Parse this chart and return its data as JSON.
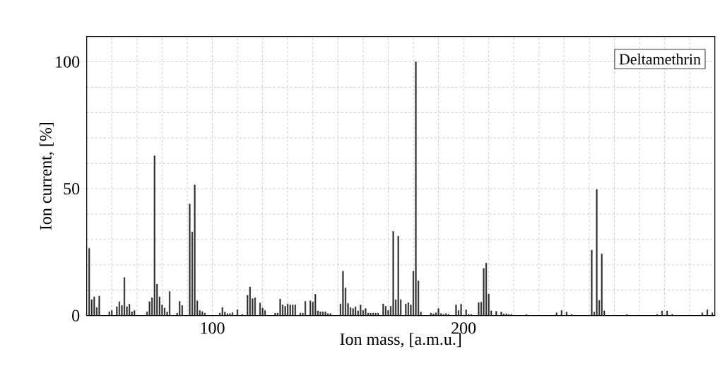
{
  "chart_data": {
    "type": "bar",
    "xlabel": "Ion mass, [a.m.u.]",
    "ylabel": "Ion current, [%]",
    "annotations": [
      "Deltamethrin"
    ],
    "x": [
      51,
      52,
      53,
      54,
      55,
      59,
      60,
      62,
      63,
      64,
      65,
      66,
      67,
      68,
      69,
      74,
      75,
      76,
      77,
      78,
      79,
      80,
      81,
      82,
      83,
      86,
      87,
      88,
      91,
      92,
      93,
      94,
      95,
      96,
      97,
      103,
      104,
      105,
      106,
      107,
      108,
      110,
      112,
      114,
      115,
      116,
      117,
      119,
      120,
      121,
      125,
      126,
      127,
      128,
      129,
      130,
      131,
      132,
      133,
      135,
      136,
      137,
      139,
      140,
      141,
      142,
      143,
      144,
      145,
      146,
      147,
      151,
      152,
      153,
      154,
      155,
      156,
      157,
      158,
      159,
      160,
      161,
      162,
      163,
      164,
      165,
      166,
      168,
      169,
      170,
      171,
      172,
      173,
      174,
      175,
      177,
      178,
      179,
      180,
      181,
      182,
      183,
      187,
      188,
      189,
      190,
      191,
      192,
      193,
      194,
      197,
      198,
      199,
      201,
      202,
      203,
      206,
      207,
      208,
      209,
      210,
      211,
      213,
      215,
      216,
      217,
      218,
      219,
      225,
      237,
      239,
      241,
      243,
      251,
      252,
      253,
      254,
      255,
      256,
      265,
      277,
      279,
      281,
      283,
      295,
      297,
      299
    ],
    "values": [
      26.5,
      6.3,
      7.4,
      3.2,
      7.7,
      1.5,
      2,
      3.5,
      5.5,
      4,
      15,
      3.5,
      4.5,
      1.5,
      2,
      1.5,
      5.5,
      7,
      63,
      12.4,
      7.4,
      4.2,
      3,
      1.4,
      9.5,
      1,
      5.6,
      4,
      44,
      33,
      51.5,
      5.8,
      2,
      1.6,
      1,
      1,
      3.2,
      1.4,
      0.8,
      0.8,
      1.2,
      2.3,
      0.5,
      8,
      11.3,
      6.7,
      7,
      5,
      3,
      2,
      1,
      1,
      6.5,
      4.2,
      3.7,
      4.6,
      4.2,
      4.2,
      4.2,
      1,
      1,
      5.6,
      5.8,
      5.3,
      8.4,
      1.9,
      1.5,
      1.5,
      1.5,
      0.8,
      0.8,
      4.6,
      17.5,
      10.9,
      4.8,
      3.2,
      2.8,
      3.5,
      1.9,
      4.2,
      2,
      2.8,
      1,
      1,
      1,
      1,
      1,
      4.6,
      3.7,
      2,
      3.7,
      33.2,
      6.3,
      31.3,
      6.3,
      4.6,
      5.1,
      4.2,
      17.5,
      100,
      13.7,
      1.4,
      1,
      0.7,
      1.1,
      2.8,
      0.8,
      0.5,
      0.8,
      0.5,
      4.2,
      2,
      4.5,
      2.3,
      0.5,
      0.5,
      5.1,
      5.3,
      18.6,
      20.7,
      8.5,
      1.9,
      1.7,
      1.4,
      0.7,
      0.7,
      0.5,
      0.5,
      0.5,
      1.1,
      2,
      1.4,
      0.5,
      25.8,
      1.4,
      49.7,
      6,
      24.3,
      1.9,
      0.5,
      0.5,
      1.9,
      1.9,
      0.5,
      1.1,
      2.3,
      1.1
    ],
    "color": "#333333",
    "xlim": [
      50,
      300
    ],
    "xticks": [
      {
        "value": 60,
        "label": null
      },
      {
        "value": 70,
        "label": null
      },
      {
        "value": 80,
        "label": null
      },
      {
        "value": 90,
        "label": null
      },
      100,
      {
        "value": 110,
        "label": null
      },
      {
        "value": 120,
        "label": null
      },
      {
        "value": 130,
        "label": null
      },
      {
        "value": 140,
        "label": null
      },
      {
        "value": 150,
        "label": null
      },
      {
        "value": 160,
        "label": null
      },
      {
        "value": 170,
        "label": null
      },
      {
        "value": 180,
        "label": null
      },
      {
        "value": 190,
        "label": null
      },
      200,
      {
        "value": 210,
        "label": null
      },
      {
        "value": 220,
        "label": null
      },
      {
        "value": 230,
        "label": null
      },
      {
        "value": 240,
        "label": null
      },
      {
        "value": 250,
        "label": null
      },
      {
        "value": 260,
        "label": null
      },
      {
        "value": 270,
        "label": null
      },
      {
        "value": 280,
        "label": null
      },
      {
        "value": 290,
        "label": null
      }
    ],
    "ylim": [
      0,
      110
    ],
    "yticks": [
      0,
      {
        "value": 10,
        "label": null
      },
      {
        "value": 20,
        "label": null
      },
      {
        "value": 30,
        "label": null
      },
      {
        "value": 40,
        "label": null
      },
      50,
      {
        "value": 60,
        "label": null
      },
      {
        "value": 70,
        "label": null
      },
      {
        "value": 80,
        "label": null
      },
      {
        "value": 90,
        "label": null
      },
      100
    ],
    "grid": true
  }
}
